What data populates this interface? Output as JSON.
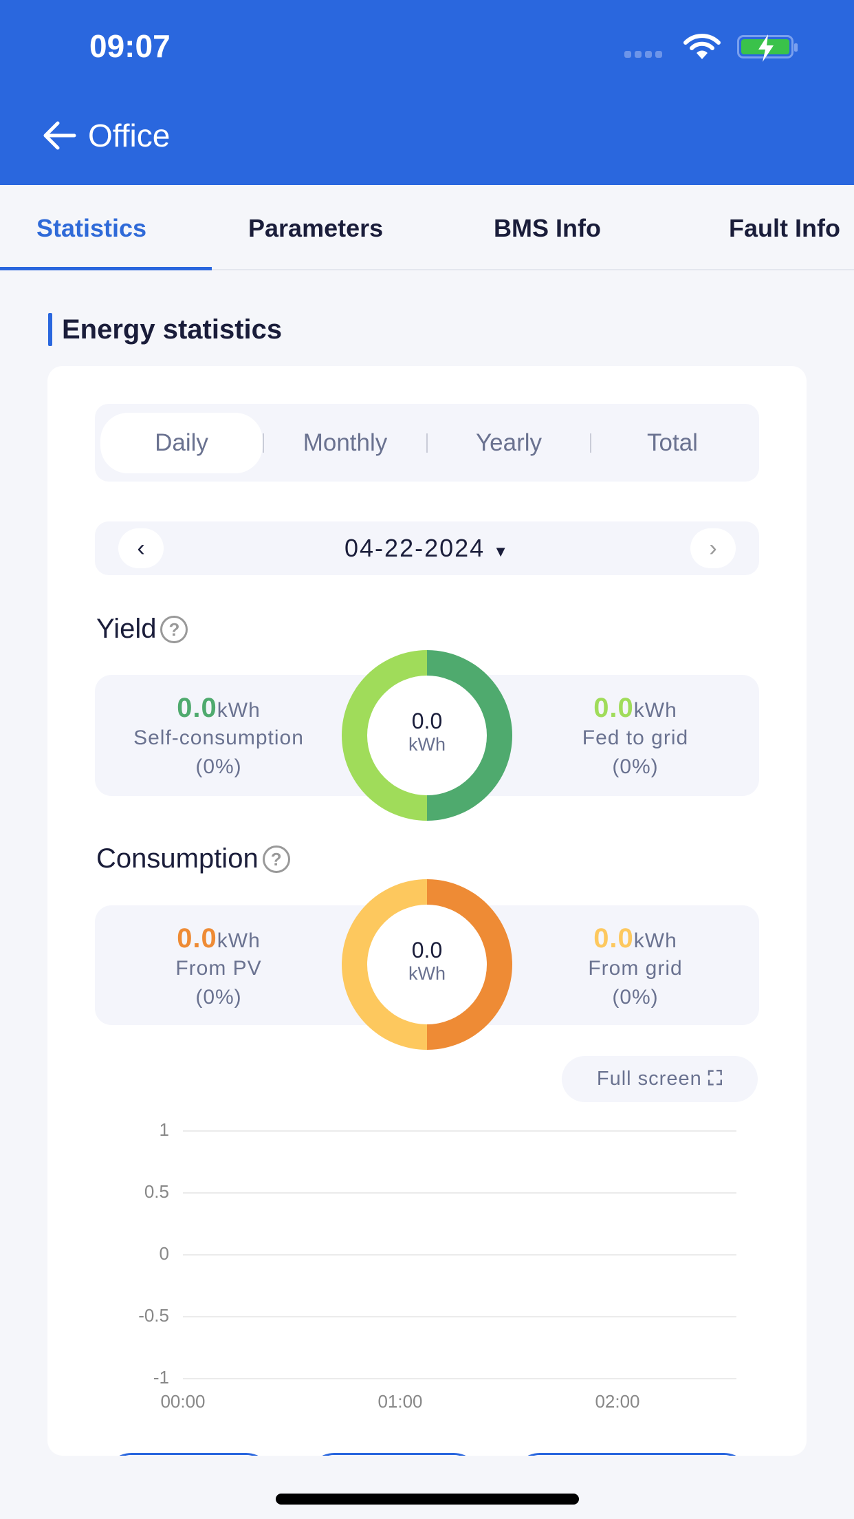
{
  "status_bar": {
    "time": "09:07"
  },
  "header": {
    "title": "Office"
  },
  "tabs": [
    "Statistics",
    "Parameters",
    "BMS Info",
    "Fault Info"
  ],
  "section_title": "Energy statistics",
  "period_tabs": [
    "Daily",
    "Monthly",
    "Yearly",
    "Total"
  ],
  "date": "04-22-2024",
  "yield": {
    "label": "Yield",
    "total": "0.0",
    "total_unit": "kWh",
    "left": {
      "value": "0.0",
      "unit": "kWh",
      "name": "Self-consumption",
      "pct": "(0%)"
    },
    "right": {
      "value": "0.0",
      "unit": "kWh",
      "name": "Fed to grid",
      "pct": "(0%)"
    }
  },
  "consumption": {
    "label": "Consumption",
    "total": "0.0",
    "total_unit": "kWh",
    "left": {
      "value": "0.0",
      "unit": "kWh",
      "name": "From PV",
      "pct": "(0%)"
    },
    "right": {
      "value": "0.0",
      "unit": "kWh",
      "name": "From grid",
      "pct": "(0%)"
    }
  },
  "full_screen": "Full screen",
  "colors": {
    "primary": "#2a67de",
    "self": "#4faa6e",
    "fed": "#a0dc5a",
    "pv": "#ee8b35",
    "grid": "#fdc85e"
  },
  "chart_data": {
    "type": "line",
    "x_ticks": [
      "00:00",
      "01:00",
      "02:00"
    ],
    "y_ticks": [
      "1",
      "0.5",
      "0",
      "-0.5",
      "-1"
    ],
    "ylim": [
      -1,
      1
    ],
    "series": [],
    "grid": true
  }
}
